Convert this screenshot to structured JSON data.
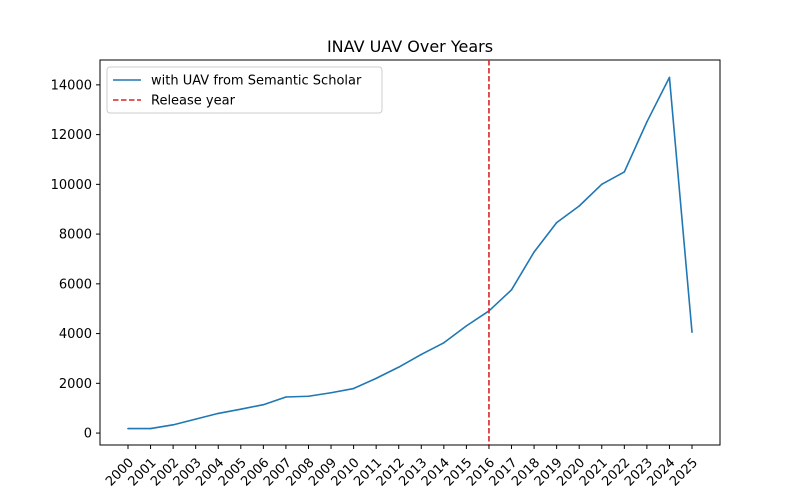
{
  "chart_data": {
    "type": "line",
    "title": "INAV UAV Over Years",
    "xlabel": "",
    "ylabel": "",
    "x": [
      "2000",
      "2001",
      "2002",
      "2003",
      "2004",
      "2005",
      "2006",
      "2007",
      "2008",
      "2009",
      "2010",
      "2011",
      "2012",
      "2013",
      "2014",
      "2015",
      "2016",
      "2017",
      "2018",
      "2019",
      "2020",
      "2021",
      "2022",
      "2023",
      "2024",
      "2025"
    ],
    "series": [
      {
        "name": "with UAV from Semantic Scholar",
        "color": "#1f77b4",
        "values": [
          180,
          180,
          330,
          560,
          790,
          960,
          1140,
          1450,
          1480,
          1620,
          1790,
          2200,
          2650,
          3160,
          3630,
          4310,
          4910,
          5760,
          7280,
          8460,
          9130,
          10000,
          10500,
          12510,
          14300,
          4060
        ]
      }
    ],
    "reference_lines": [
      {
        "name": "Release year",
        "x": "2016",
        "color": "#d62728",
        "style": "dashed"
      }
    ],
    "yticks": [
      0,
      2000,
      4000,
      6000,
      8000,
      10000,
      12000,
      14000
    ],
    "ylim": [
      -480,
      15000
    ],
    "grid": false,
    "legend_position": "upper-left"
  }
}
